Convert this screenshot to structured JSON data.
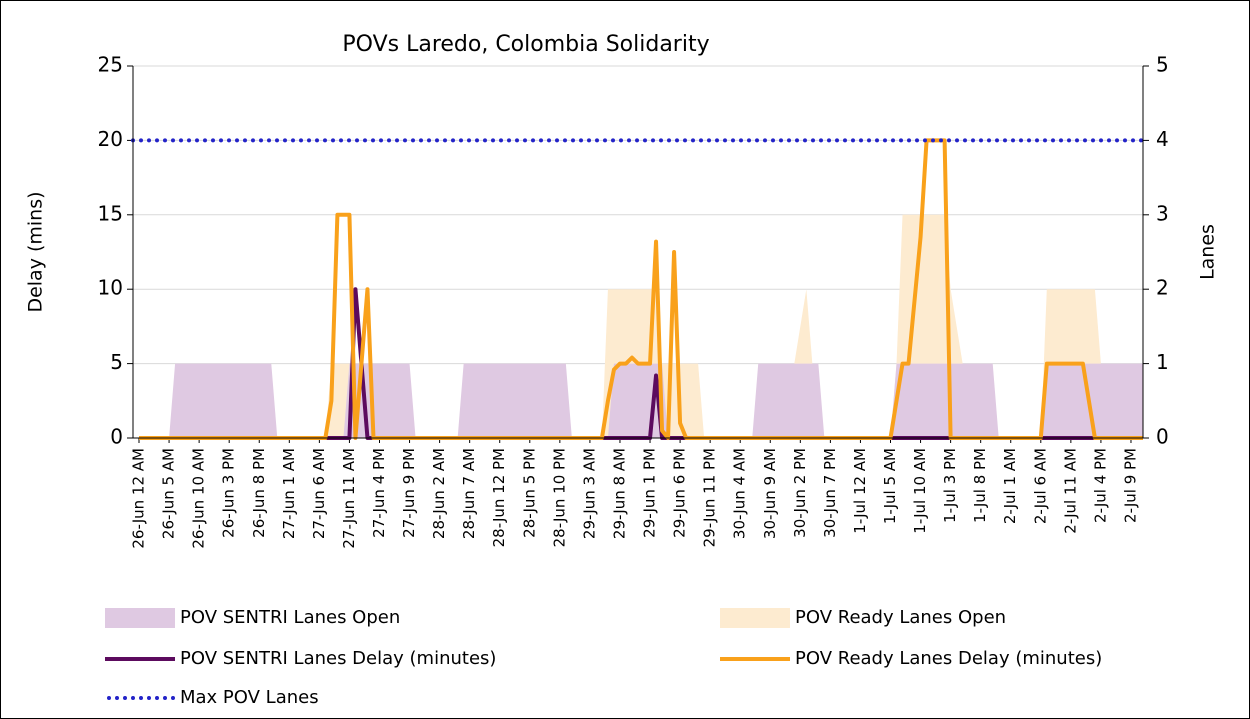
{
  "chart_data": {
    "type": "line",
    "title": "POVs Laredo, Colombia Solidarity",
    "y_label": "Delay (mins)",
    "y2_label": "Lanes",
    "xlim": [
      -1,
      167
    ],
    "xticks": [
      {
        "value": 0,
        "label": "26-Jun 12 AM"
      },
      {
        "value": 5,
        "label": "26-Jun 5 AM"
      },
      {
        "value": 10,
        "label": "26-Jun 10 AM"
      },
      {
        "value": 15,
        "label": "26-Jun 3 PM"
      },
      {
        "value": 20,
        "label": "26-Jun 8 PM"
      },
      {
        "value": 25,
        "label": "27-Jun 1 AM"
      },
      {
        "value": 30,
        "label": "27-Jun 6 AM"
      },
      {
        "value": 35,
        "label": "27-Jun 11 AM"
      },
      {
        "value": 40,
        "label": "27-Jun 4 PM"
      },
      {
        "value": 45,
        "label": "27-Jun 9 PM"
      },
      {
        "value": 50,
        "label": "28-Jun 2 AM"
      },
      {
        "value": 55,
        "label": "28-Jun 7 AM"
      },
      {
        "value": 60,
        "label": "28-Jun 12 PM"
      },
      {
        "value": 65,
        "label": "28-Jun 5 PM"
      },
      {
        "value": 70,
        "label": "28-Jun 10 PM"
      },
      {
        "value": 75,
        "label": "29-Jun 3 AM"
      },
      {
        "value": 80,
        "label": "29-Jun 8 AM"
      },
      {
        "value": 85,
        "label": "29-Jun 1 PM"
      },
      {
        "value": 90,
        "label": "29-Jun 6 PM"
      },
      {
        "value": 95,
        "label": "29-Jun 11 PM"
      },
      {
        "value": 100,
        "label": "30-Jun 4 AM"
      },
      {
        "value": 105,
        "label": "30-Jun 9 AM"
      },
      {
        "value": 110,
        "label": "30-Jun 2 PM"
      },
      {
        "value": 115,
        "label": "30-Jun 7 PM"
      },
      {
        "value": 120,
        "label": "1-Jul 12 AM"
      },
      {
        "value": 125,
        "label": "1-Jul 5 AM"
      },
      {
        "value": 130,
        "label": "1-Jul 10 AM"
      },
      {
        "value": 135,
        "label": "1-Jul 3 PM"
      },
      {
        "value": 140,
        "label": "1-Jul 8 PM"
      },
      {
        "value": 145,
        "label": "2-Jul 1 AM"
      },
      {
        "value": 150,
        "label": "2-Jul 6 AM"
      },
      {
        "value": 155,
        "label": "2-Jul 11 AM"
      },
      {
        "value": 160,
        "label": "2-Jul 4 PM"
      },
      {
        "value": 165,
        "label": "2-Jul 9 PM"
      }
    ],
    "ylim": [
      0,
      25
    ],
    "yticks": [
      0,
      5,
      10,
      15,
      20,
      25
    ],
    "y2lim": [
      0,
      5
    ],
    "y2ticks": [
      0,
      1,
      2,
      3,
      4,
      5
    ],
    "grid": true,
    "series": [
      {
        "name": "POV SENTRI Lanes Open",
        "kind": "area",
        "axis": "y2",
        "color": "#dfc9e2",
        "x": [
          0,
          5,
          6,
          22,
          23,
          34,
          35,
          45,
          46,
          53,
          54,
          71,
          72,
          78,
          79,
          87,
          88,
          102,
          103,
          113,
          114,
          125,
          126,
          142,
          143,
          150,
          151,
          167
        ],
        "values": [
          0,
          0,
          1,
          1,
          0,
          0,
          1,
          1,
          0,
          0,
          1,
          1,
          0,
          0,
          1,
          1,
          0,
          0,
          1,
          1,
          0,
          0,
          1,
          1,
          0,
          0,
          1,
          1
        ]
      },
      {
        "name": "POV Ready Lanes Open",
        "kind": "area",
        "axis": "y2",
        "color": "#fdebd0",
        "x": [
          0,
          31,
          32,
          38,
          39,
          77,
          78,
          86,
          87,
          93,
          94,
          108,
          109,
          111,
          112,
          113,
          125,
          126,
          127,
          134,
          135,
          137,
          138,
          150,
          151,
          159,
          160,
          161,
          167
        ],
        "values": [
          0,
          0,
          1,
          1,
          0,
          0,
          2,
          2,
          1,
          1,
          0,
          0,
          1,
          2,
          1,
          0,
          0,
          1,
          3,
          3,
          2,
          1,
          0,
          0,
          2,
          2,
          1,
          0,
          0
        ]
      },
      {
        "name": "POV SENTRI Lanes Delay (minutes)",
        "kind": "line",
        "color": "#5c0b5e",
        "x": [
          0,
          35,
          36,
          38,
          85,
          86,
          87,
          167
        ],
        "values": [
          0,
          0,
          10,
          0,
          0,
          4.2,
          0,
          0
        ]
      },
      {
        "name": "POV Ready Lanes Delay (minutes)",
        "kind": "line",
        "color": "#f9a11b",
        "x": [
          0,
          31,
          32,
          33,
          35,
          36,
          38,
          39,
          77,
          78,
          79,
          80,
          81,
          82,
          83,
          85,
          86,
          87,
          88,
          89,
          90,
          91,
          125,
          127,
          128,
          130,
          131,
          134,
          135,
          150,
          151,
          157,
          159,
          167
        ],
        "values": [
          0,
          0,
          2.5,
          15,
          15,
          0,
          10,
          0,
          0,
          2.5,
          4.6,
          5,
          5,
          5.4,
          5,
          5,
          13.2,
          0.5,
          0,
          12.5,
          1,
          0,
          0,
          5,
          5,
          13.5,
          20,
          20,
          0,
          0,
          5,
          5,
          0,
          0
        ]
      },
      {
        "name": "Max POV Lanes",
        "kind": "line",
        "style": "dotted",
        "axis": "y2",
        "color": "#2323c8",
        "x": [
          -1,
          167
        ],
        "values": [
          4,
          4
        ]
      }
    ]
  }
}
